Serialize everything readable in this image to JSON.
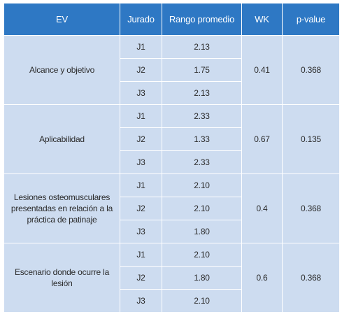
{
  "table": {
    "headers": [
      "EV",
      "Jurado",
      "Rango promedio",
      "WK",
      "p-value"
    ],
    "groups": [
      {
        "ev": "Alcance y objetivo",
        "wk": "0.41",
        "p_value": "0.368",
        "rows": [
          {
            "jurado": "J1",
            "rango": "2.13"
          },
          {
            "jurado": "J2",
            "rango": "1.75"
          },
          {
            "jurado": "J3",
            "rango": "2.13"
          }
        ]
      },
      {
        "ev": "Aplicabilidad",
        "wk": "0.67",
        "p_value": "0.135",
        "rows": [
          {
            "jurado": "J1",
            "rango": "2.33"
          },
          {
            "jurado": "J2",
            "rango": "1.33"
          },
          {
            "jurado": "J3",
            "rango": "2.33"
          }
        ]
      },
      {
        "ev": "Lesiones osteomusculares presentadas en relación a la práctica de patinaje",
        "wk": "0.4",
        "p_value": "0.368",
        "rows": [
          {
            "jurado": "J1",
            "rango": "2.10"
          },
          {
            "jurado": "J2",
            "rango": "2.10"
          },
          {
            "jurado": "J3",
            "rango": "1.80"
          }
        ]
      },
      {
        "ev": "Escenario donde ocurre la lesión",
        "wk": "0.6",
        "p_value": "0.368",
        "rows": [
          {
            "jurado": "J1",
            "rango": "2.10"
          },
          {
            "jurado": "J2",
            "rango": "1.80"
          },
          {
            "jurado": "J3",
            "rango": "2.10"
          }
        ]
      }
    ]
  },
  "colors": {
    "header_bg": "#2e78c4",
    "cell_bg": "#cddcf0",
    "grid": "#ffffff"
  }
}
